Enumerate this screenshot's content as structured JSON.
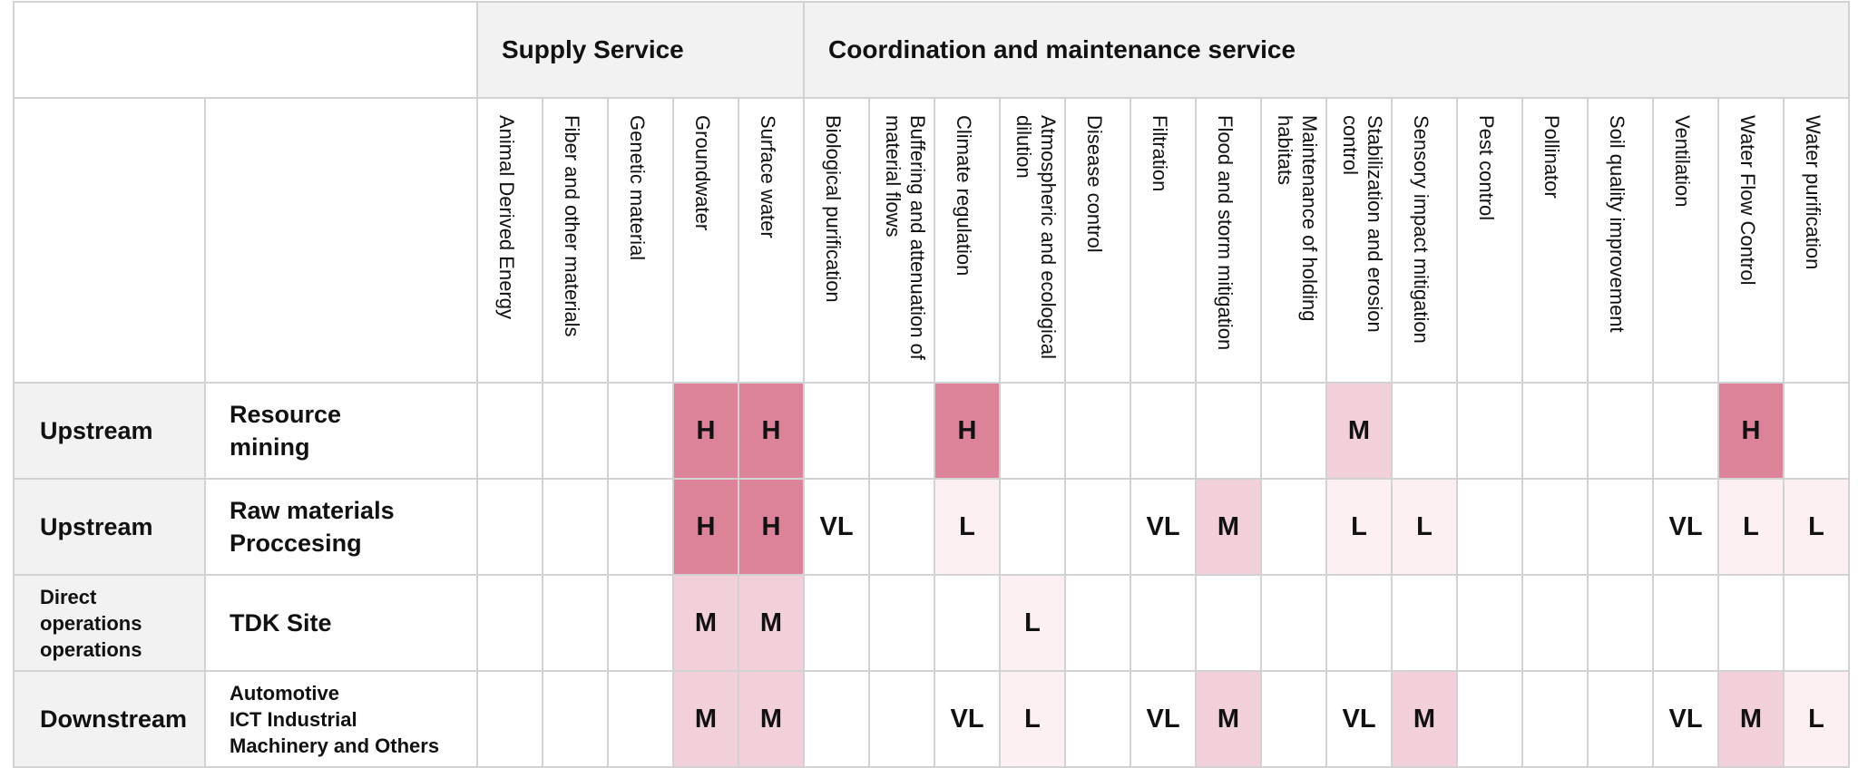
{
  "headers": {
    "supply": "Supply Service",
    "coordination": "Coordination and maintenance service"
  },
  "columns": [
    "Animal Derived Energy",
    "Fiber and other materials",
    "Genetic material",
    "Groundwater",
    "Surface water",
    "Biological purification",
    "Buffering and attenuation of material flows",
    "Climate regulation",
    "Atmospheric and ecological dilution",
    "Disease control",
    "Filtration",
    "Flood and storm mitigation",
    "Maintenance of holding habitats",
    "Stabilization and erosion control",
    "Sensory impact mitigation",
    "Pest control",
    "Pollinator",
    "Soil quality improvement",
    "Ventilation",
    "Water Flow Control",
    "Water purification"
  ],
  "rows": [
    {
      "stage": "Upstream",
      "activity": "Resource\nmining",
      "values": [
        "",
        "",
        "",
        "H",
        "H",
        "",
        "",
        "H",
        "",
        "",
        "",
        "",
        "",
        "M",
        "",
        "",
        "",
        "",
        "",
        "H",
        ""
      ]
    },
    {
      "stage": "Upstream",
      "activity": "Raw materials\nProccesing",
      "values": [
        "",
        "",
        "",
        "H",
        "H",
        "VL",
        "",
        "L",
        "",
        "",
        "VL",
        "M",
        "",
        "L",
        "L",
        "",
        "",
        "",
        "VL",
        "L",
        "L"
      ]
    },
    {
      "stage": "Direct\noperations\noperations",
      "activity": "TDK Site",
      "values": [
        "",
        "",
        "",
        "M",
        "M",
        "",
        "",
        "",
        "L",
        "",
        "",
        "",
        "",
        "",
        "",
        "",
        "",
        "",
        "",
        "",
        ""
      ]
    },
    {
      "stage": "Downstream",
      "activity": "Automotive\nICT Industrial\nMachinery and Others",
      "values": [
        "",
        "",
        "",
        "M",
        "M",
        "",
        "",
        "VL",
        "L",
        "",
        "VL",
        "M",
        "",
        "VL",
        "M",
        "",
        "",
        "",
        "VL",
        "M",
        "L"
      ]
    }
  ],
  "level_colors": {
    "H": "#dc8299",
    "M": "#f2d0d9",
    "L": "#fcf0f3",
    "VL": "#ffffff"
  }
}
